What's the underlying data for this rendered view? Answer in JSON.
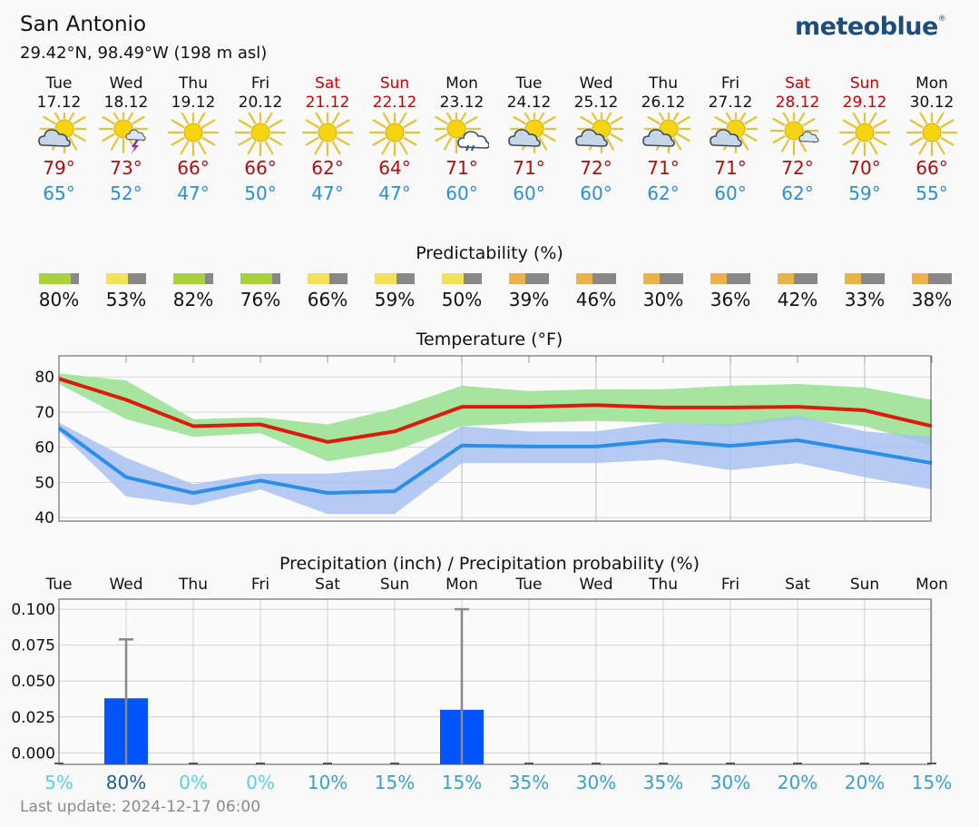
{
  "header": {
    "location": "San Antonio",
    "coords": "29.42°N, 98.49°W (198 m asl)",
    "logo": "meteoblue"
  },
  "days": [
    {
      "name": "Tue",
      "date": "17.12",
      "weekend": false,
      "icon": "sun-cloud-icon",
      "tmax": "79°",
      "tmin": "65°"
    },
    {
      "name": "Wed",
      "date": "18.12",
      "weekend": false,
      "icon": "sun-cloud-thunder-icon",
      "tmax": "73°",
      "tmin": "52°"
    },
    {
      "name": "Thu",
      "date": "19.12",
      "weekend": false,
      "icon": "sun-icon",
      "tmax": "66°",
      "tmin": "47°"
    },
    {
      "name": "Fri",
      "date": "20.12",
      "weekend": false,
      "icon": "sun-icon",
      "tmax": "66°",
      "tmin": "50°"
    },
    {
      "name": "Sat",
      "date": "21.12",
      "weekend": true,
      "icon": "sun-icon",
      "tmax": "62°",
      "tmin": "47°"
    },
    {
      "name": "Sun",
      "date": "22.12",
      "weekend": true,
      "icon": "sun-icon",
      "tmax": "64°",
      "tmin": "47°"
    },
    {
      "name": "Mon",
      "date": "23.12",
      "weekend": false,
      "icon": "sun-cloud-rain-icon",
      "tmax": "71°",
      "tmin": "60°"
    },
    {
      "name": "Tue",
      "date": "24.12",
      "weekend": false,
      "icon": "sun-cloud-icon",
      "tmax": "71°",
      "tmin": "60°"
    },
    {
      "name": "Wed",
      "date": "25.12",
      "weekend": false,
      "icon": "sun-cloud-icon",
      "tmax": "72°",
      "tmin": "60°"
    },
    {
      "name": "Thu",
      "date": "26.12",
      "weekend": false,
      "icon": "sun-cloud-icon",
      "tmax": "71°",
      "tmin": "62°"
    },
    {
      "name": "Fri",
      "date": "27.12",
      "weekend": false,
      "icon": "sun-cloud-icon",
      "tmax": "71°",
      "tmin": "60°"
    },
    {
      "name": "Sat",
      "date": "28.12",
      "weekend": true,
      "icon": "sun-small-cloud-icon",
      "tmax": "72°",
      "tmin": "62°"
    },
    {
      "name": "Sun",
      "date": "29.12",
      "weekend": true,
      "icon": "sun-icon",
      "tmax": "70°",
      "tmin": "59°"
    },
    {
      "name": "Mon",
      "date": "30.12",
      "weekend": false,
      "icon": "sun-icon",
      "tmax": "66°",
      "tmin": "55°"
    }
  ],
  "predictability": {
    "title": "Predictability (%)",
    "values": [
      80,
      53,
      82,
      76,
      66,
      59,
      50,
      39,
      46,
      30,
      36,
      42,
      33,
      38
    ],
    "labels": [
      "80%",
      "53%",
      "82%",
      "76%",
      "66%",
      "59%",
      "50%",
      "39%",
      "46%",
      "30%",
      "36%",
      "42%",
      "33%",
      "38%"
    ]
  },
  "colors": {
    "tmax_line": "#dd1a0c",
    "tmax_band": "#a5e5a0",
    "tmin_line": "#2b8ee8",
    "tmin_band": "#a6bff2",
    "overlap_band": "#7cc7a6",
    "precip_bar": "#0055ff",
    "pred_green": "#a9d13a",
    "pred_yellow": "#f2e256",
    "pred_orange": "#ecb24a",
    "pred_gray": "#888888"
  },
  "chart_data": [
    {
      "type": "line",
      "title": "Temperature (°F)",
      "ylim": [
        39,
        86
      ],
      "yticks": [
        40,
        50,
        60,
        70,
        80
      ],
      "x_days": [
        0,
        1,
        2,
        3,
        4,
        5,
        6,
        7,
        8,
        9,
        10,
        11,
        12,
        13
      ],
      "series": [
        {
          "values": [
            79.5,
            73.5,
            66,
            66.5,
            61.5,
            64.5,
            71.5,
            71.5,
            72,
            71.3,
            71.3,
            71.5,
            70.5,
            66
          ]
        },
        {
          "values": [
            65.5,
            51.5,
            47,
            50.5,
            47,
            47.5,
            60.5,
            60.2,
            60.2,
            62,
            60.4,
            62,
            58.8,
            55.5
          ]
        }
      ],
      "tmax_band_upper": [
        81,
        79,
        68,
        68.5,
        66.5,
        71,
        77.5,
        76,
        76.5,
        76.5,
        77.5,
        78,
        77,
        73.5
      ],
      "tmax_band_lower": [
        78,
        68,
        63,
        64,
        56,
        59,
        66,
        67,
        67.5,
        67,
        66,
        68,
        66,
        60.5
      ],
      "tmin_band_upper": [
        67,
        57,
        49.5,
        52.5,
        52.5,
        54,
        66,
        64.5,
        64.5,
        67,
        66.5,
        69,
        64.5,
        63
      ],
      "tmin_band_lower": [
        64.5,
        46,
        43.5,
        48,
        41,
        41,
        55.5,
        55.5,
        55.5,
        56.5,
        53.5,
        55.5,
        51.5,
        48
      ],
      "grid": true
    },
    {
      "type": "bar",
      "title": "Precipitation (inch) / Precipitation probability (%)",
      "categories": [
        "Tue",
        "Wed",
        "Thu",
        "Fri",
        "Sat",
        "Sun",
        "Mon",
        "Tue",
        "Wed",
        "Thu",
        "Fri",
        "Sat",
        "Sun",
        "Mon"
      ],
      "values": [
        0,
        0.038,
        0,
        0,
        0,
        0,
        0.03,
        0,
        0,
        0,
        0,
        0,
        0,
        0
      ],
      "error_max": [
        0,
        0.079,
        0,
        0,
        0,
        0,
        0.1,
        0,
        0,
        0,
        0,
        0,
        0,
        0
      ],
      "ylim": [
        -0.008,
        0.107
      ],
      "yticks": [
        "0.000",
        "0.025",
        "0.050",
        "0.075",
        "0.100"
      ],
      "ytick_values": [
        0,
        0.025,
        0.05,
        0.075,
        0.1
      ],
      "probability": [
        "5%",
        "80%",
        "0%",
        "0%",
        "10%",
        "15%",
        "15%",
        "35%",
        "30%",
        "35%",
        "30%",
        "20%",
        "20%",
        "15%"
      ],
      "grid": true
    }
  ],
  "footer": {
    "last_update": "Last update: 2024-12-17 06:00"
  }
}
